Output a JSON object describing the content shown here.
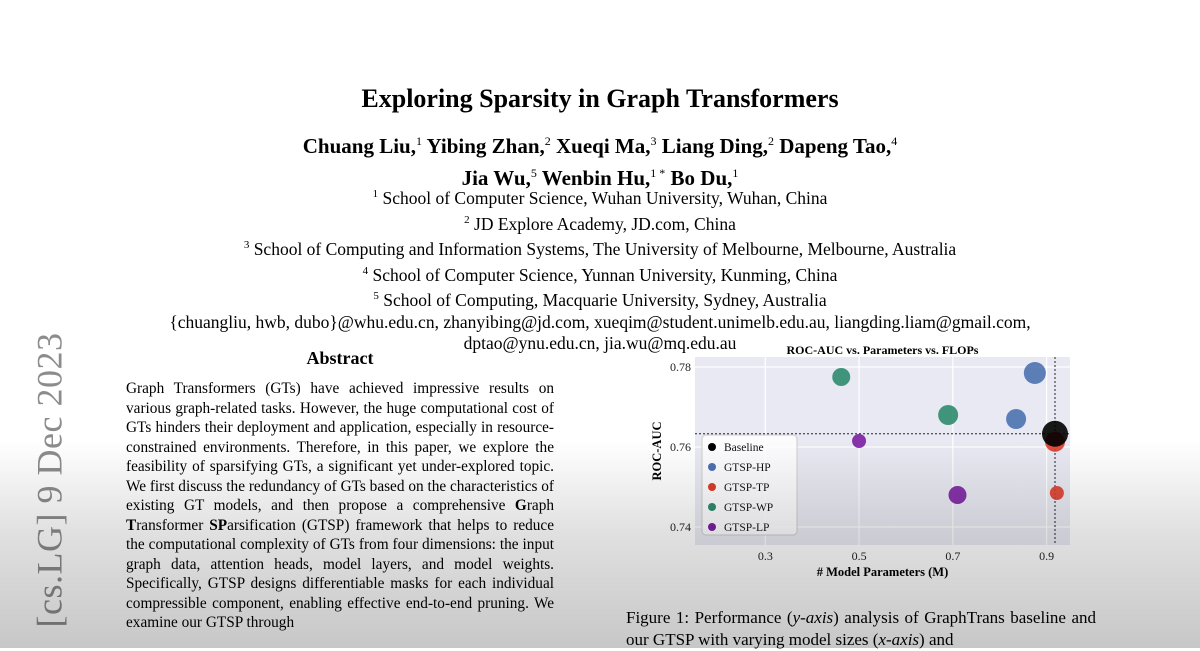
{
  "arxiv_stamp": "[cs.LG]  9 Dec 2023",
  "title": "Exploring Sparsity in Graph Transformers",
  "authors": [
    {
      "name": "Chuang Liu,",
      "sup": "1"
    },
    {
      "name": "Yibing Zhan,",
      "sup": "2"
    },
    {
      "name": "Xueqi Ma,",
      "sup": "3"
    },
    {
      "name": "Liang Ding,",
      "sup": "2"
    },
    {
      "name": "Dapeng Tao,",
      "sup": "4"
    },
    {
      "name": "Jia Wu,",
      "sup": "5"
    },
    {
      "name": "Wenbin Hu,",
      "sup": "1 *"
    },
    {
      "name": "Bo Du,",
      "sup": "1"
    }
  ],
  "affiliations": [
    {
      "sup": "1",
      "text": "School of Computer Science, Wuhan University, Wuhan, China"
    },
    {
      "sup": "2",
      "text": "JD Explore Academy, JD.com, China"
    },
    {
      "sup": "3",
      "text": "School of Computing and Information Systems, The University of Melbourne, Melbourne, Australia"
    },
    {
      "sup": "4",
      "text": "School of Computer Science, Yunnan University, Kunming, China"
    },
    {
      "sup": "5",
      "text": "School of Computing, Macquarie University, Sydney, Australia"
    }
  ],
  "emails": [
    "{chuangliu, hwb, dubo}@whu.edu.cn, zhanyibing@jd.com, xueqim@student.unimelb.edu.au, liangding.liam@gmail.com,",
    "dptao@ynu.edu.cn, jia.wu@mq.edu.au"
  ],
  "abstract": {
    "heading": "Abstract",
    "part1": "Graph Transformers (GTs) have achieved impressive results on various graph-related tasks. However, the huge computational cost of GTs hinders their deployment and application, especially in resource-constrained environments. Therefore, in this paper, we explore the feasibility of sparsifying GTs, a significant yet under-explored topic. We first discuss the redundancy of GTs based on the characteristics of existing GT models, and then propose a comprehensive ",
    "g": "G",
    "raph": "raph ",
    "t": "T",
    "ransformer": "ransformer ",
    "sp": "SP",
    "part2": "arsification (GTSP) framework that helps to reduce the computational complexity of GTs from four dimensions: the input graph data, attention heads, model layers, and model weights. Specifically, GTSP designs differentiable masks for each individual compressible component, enabling effective end-to-end pruning. We examine our GTSP through"
  },
  "caption": {
    "label": "Figure 1: Performance (",
    "yaxis": "y-axis",
    "mid": ") analysis of GraphTrans baseline and our GTSP with varying model sizes (",
    "xaxis": "x-axis",
    "end": ") and"
  },
  "chart_data": {
    "type": "scatter",
    "title": "ROC-AUC vs. Parameters vs. FLOPs",
    "xlabel": "# Model Parameters (M)",
    "ylabel": "ROC-AUC",
    "xlim": [
      0.15,
      0.95
    ],
    "ylim": [
      0.7355,
      0.7825
    ],
    "xticks": [
      0.3,
      0.5,
      0.7,
      0.9
    ],
    "xtick_labels": [
      "0.3",
      "0.5",
      "0.7",
      "0.9"
    ],
    "yticks": [
      0.74,
      0.76,
      0.78
    ],
    "ytick_labels": [
      "0.74",
      "0.76",
      "0.78"
    ],
    "grid": true,
    "legend_position": "left",
    "reference_lines": {
      "x": 0.918,
      "y": 0.7633
    },
    "series": [
      {
        "name": "Baseline",
        "color": "#000000",
        "points": [
          {
            "x": 0.918,
            "y": 0.7633,
            "size": 13
          }
        ]
      },
      {
        "name": "GTSP-HP",
        "color": "#4c72b0",
        "points": [
          {
            "x": 0.875,
            "y": 0.7785,
            "size": 11
          },
          {
            "x": 0.835,
            "y": 0.767,
            "size": 10
          }
        ]
      },
      {
        "name": "GTSP-TP",
        "color": "#dd3c2a",
        "points": [
          {
            "x": 0.918,
            "y": 0.7613,
            "size": 10
          },
          {
            "x": 0.922,
            "y": 0.7485,
            "size": 7
          }
        ]
      },
      {
        "name": "GTSP-WP",
        "color": "#2e8b6e",
        "points": [
          {
            "x": 0.462,
            "y": 0.7775,
            "size": 9
          },
          {
            "x": 0.69,
            "y": 0.768,
            "size": 10
          }
        ]
      },
      {
        "name": "GTSP-LP",
        "color": "#7b1fa2",
        "points": [
          {
            "x": 0.5,
            "y": 0.7615,
            "size": 7
          },
          {
            "x": 0.71,
            "y": 0.748,
            "size": 9
          }
        ]
      }
    ]
  }
}
